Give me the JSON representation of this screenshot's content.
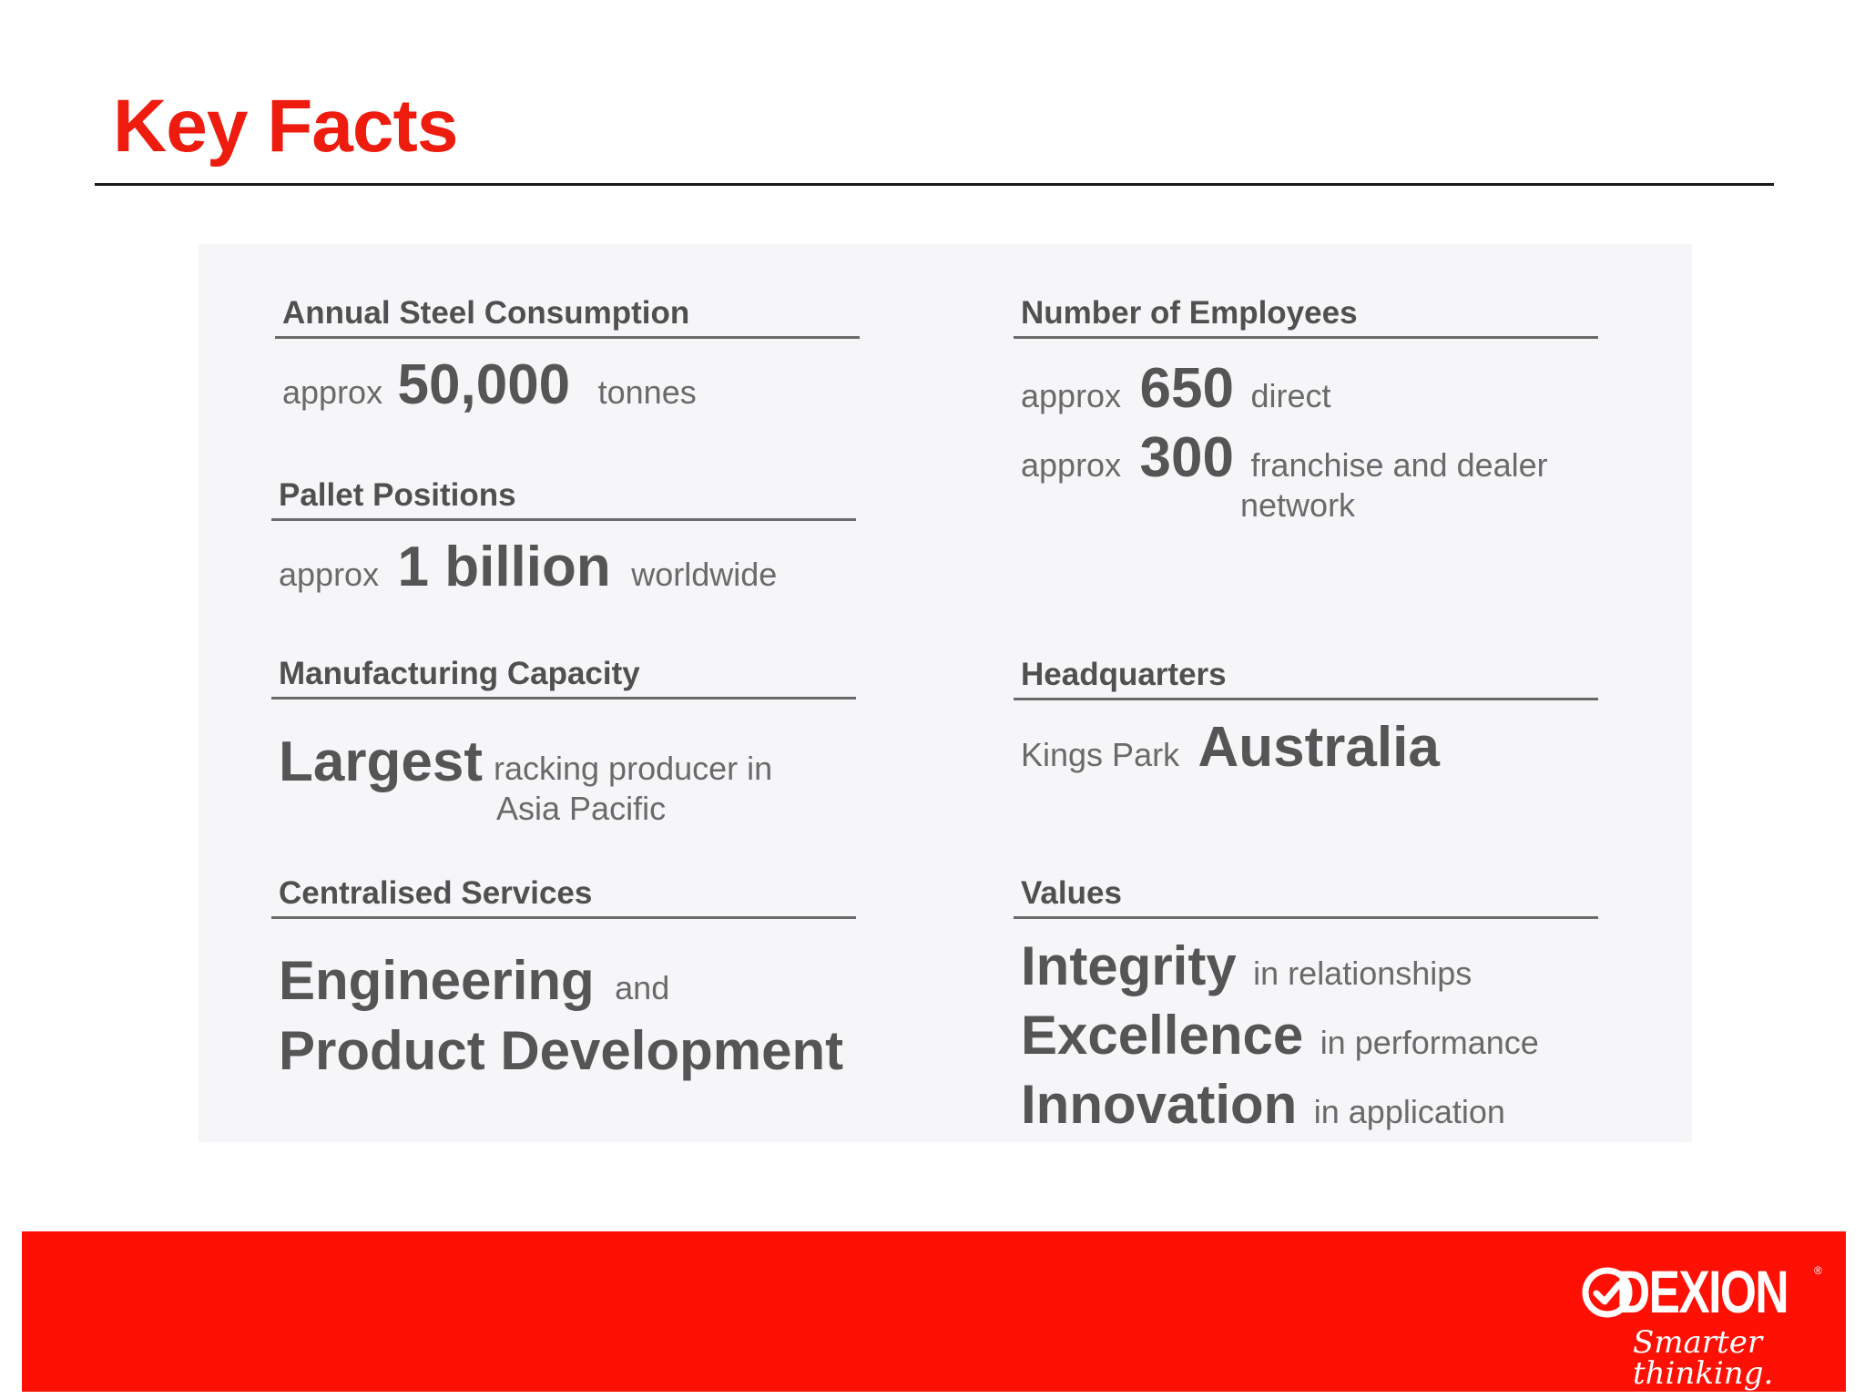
{
  "slide": {
    "title": "Key Facts"
  },
  "sections": {
    "steel": {
      "heading": "Annual Steel Consumption",
      "prefix": "approx",
      "value": "50,000",
      "suffix": "tonnes"
    },
    "employees": {
      "heading": "Number of Employees",
      "rows": [
        {
          "prefix": "approx",
          "value": "650",
          "suffix": "direct"
        },
        {
          "prefix": "approx",
          "value": "300",
          "suffix": "franchise and dealer",
          "suffix_line2": "network"
        }
      ]
    },
    "pallet": {
      "heading": "Pallet Positions",
      "prefix": "approx",
      "value": "1 billion",
      "suffix": "worldwide"
    },
    "manufacturing": {
      "heading": "Manufacturing Capacity",
      "value": "Largest",
      "suffix": "racking producer in",
      "suffix_line2": "Asia Pacific"
    },
    "hq": {
      "heading": "Headquarters",
      "prefix": "Kings Park",
      "value": "Australia"
    },
    "services": {
      "heading": "Centralised Services",
      "line1_value": "Engineering",
      "line1_suffix": "and",
      "line2_value": "Product Development"
    },
    "values": {
      "heading": "Values",
      "items": [
        {
          "value": "Integrity",
          "suffix": "in relationships"
        },
        {
          "value": "Excellence",
          "suffix": "in performance"
        },
        {
          "value": "Innovation",
          "suffix": "in application"
        }
      ]
    }
  },
  "footer": {
    "brand": "DEXION",
    "registered_mark": "®",
    "tagline": "Smarter thinking.",
    "logo_icon": "check-circle-icon",
    "band_color": "#fe1005"
  },
  "colors": {
    "title": "#ee1c0f",
    "text": "#555555",
    "panel": "#f6f6f8"
  }
}
